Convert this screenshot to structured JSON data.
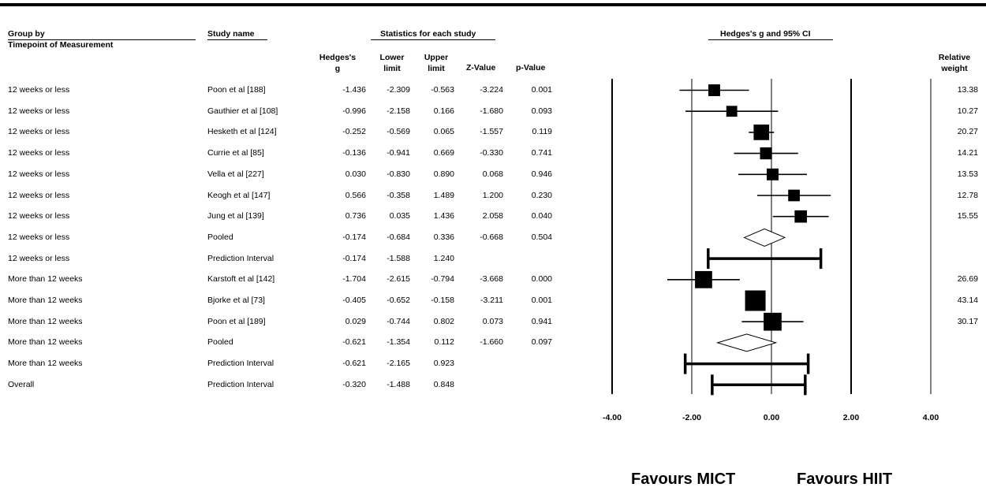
{
  "headers": {
    "group_by": "Group by",
    "group_sub": "Timepoint of Measurement",
    "study_name": "Study name",
    "stats_title": "Statistics for each study",
    "hedges_g_line1": "Hedges's",
    "hedges_g_line2": "g",
    "lower_line1": "Lower",
    "lower_line2": "limit",
    "upper_line1": "Upper",
    "upper_line2": "limit",
    "z_value": "Z-Value",
    "p_value": "p-Value",
    "plot_title": "Hedges's g and 95% CI",
    "weight_line1": "Relative",
    "weight_line2": "weight"
  },
  "rows": [
    {
      "group": "12 weeks or less",
      "study": "Poon et al [188]",
      "g": "-1.436",
      "lower": "-2.309",
      "upper": "-0.563",
      "z": "-3.224",
      "p": "0.001",
      "weight": "13.38"
    },
    {
      "group": "12 weeks or less",
      "study": "Gauthier et al [108]",
      "g": "-0.996",
      "lower": "-2.158",
      "upper": "0.166",
      "z": "-1.680",
      "p": "0.093",
      "weight": "10.27"
    },
    {
      "group": "12 weeks or less",
      "study": "Hesketh et al [124]",
      "g": "-0.252",
      "lower": "-0.569",
      "upper": "0.065",
      "z": "-1.557",
      "p": "0.119",
      "weight": "20.27"
    },
    {
      "group": "12 weeks or less",
      "study": "Currie et al [85]",
      "g": "-0.136",
      "lower": "-0.941",
      "upper": "0.669",
      "z": "-0.330",
      "p": "0.741",
      "weight": "14.21"
    },
    {
      "group": "12 weeks or less",
      "study": "Vella et al [227]",
      "g": "0.030",
      "lower": "-0.830",
      "upper": "0.890",
      "z": "0.068",
      "p": "0.946",
      "weight": "13.53"
    },
    {
      "group": "12 weeks or less",
      "study": "Keogh et al [147]",
      "g": "0.566",
      "lower": "-0.358",
      "upper": "1.489",
      "z": "1.200",
      "p": "0.230",
      "weight": "12.78"
    },
    {
      "group": "12 weeks or less",
      "study": "Jung et al [139]",
      "g": "0.736",
      "lower": "0.035",
      "upper": "1.436",
      "z": "2.058",
      "p": "0.040",
      "weight": "15.55"
    },
    {
      "group": "12 weeks or less",
      "study": "Pooled",
      "g": "-0.174",
      "lower": "-0.684",
      "upper": "0.336",
      "z": "-0.668",
      "p": "0.504",
      "weight": ""
    },
    {
      "group": "12 weeks or less",
      "study": "Prediction Interval",
      "g": "-0.174",
      "lower": "-1.588",
      "upper": "1.240",
      "z": "",
      "p": "",
      "weight": ""
    },
    {
      "group": "More than 12 weeks",
      "study": "Karstoft et al [142]",
      "g": "-1.704",
      "lower": "-2.615",
      "upper": "-0.794",
      "z": "-3.668",
      "p": "0.000",
      "weight": "26.69"
    },
    {
      "group": "More than 12 weeks",
      "study": "Bjorke et al [73]",
      "g": "-0.405",
      "lower": "-0.652",
      "upper": "-0.158",
      "z": "-3.211",
      "p": "0.001",
      "weight": "43.14"
    },
    {
      "group": "More than 12 weeks",
      "study": "Poon et al [189]",
      "g": "0.029",
      "lower": "-0.744",
      "upper": "0.802",
      "z": "0.073",
      "p": "0.941",
      "weight": "30.17"
    },
    {
      "group": "More than 12 weeks",
      "study": "Pooled",
      "g": "-0.621",
      "lower": "-1.354",
      "upper": "0.112",
      "z": "-1.660",
      "p": "0.097",
      "weight": ""
    },
    {
      "group": "More than 12 weeks",
      "study": "Prediction Interval",
      "g": "-0.621",
      "lower": "-2.165",
      "upper": "0.923",
      "z": "",
      "p": "",
      "weight": ""
    },
    {
      "group": "Overall",
      "study": "Prediction Interval",
      "g": "-0.320",
      "lower": "-1.488",
      "upper": "0.848",
      "z": "",
      "p": "",
      "weight": ""
    }
  ],
  "chart_data": {
    "type": "forest",
    "title": "Hedges's g and 95% CI",
    "xlim": [
      -4,
      4
    ],
    "xticks": [
      -4,
      -2,
      0,
      2,
      4
    ],
    "tick_labels": [
      "-4.00",
      "-2.00",
      "0.00",
      "2.00",
      "4.00"
    ],
    "reference_lines": [
      -2,
      0,
      2
    ],
    "marker_kinds": [
      "study",
      "study",
      "study",
      "study",
      "study",
      "study",
      "study",
      "pooled",
      "prediction",
      "study",
      "study",
      "study",
      "pooled",
      "prediction",
      "prediction"
    ],
    "series": [
      {
        "g": -1.436,
        "lower": -2.309,
        "upper": -0.563,
        "weight": 13.38
      },
      {
        "g": -0.996,
        "lower": -2.158,
        "upper": 0.166,
        "weight": 10.27
      },
      {
        "g": -0.252,
        "lower": -0.569,
        "upper": 0.065,
        "weight": 20.27
      },
      {
        "g": -0.136,
        "lower": -0.941,
        "upper": 0.669,
        "weight": 14.21
      },
      {
        "g": 0.03,
        "lower": -0.83,
        "upper": 0.89,
        "weight": 13.53
      },
      {
        "g": 0.566,
        "lower": -0.358,
        "upper": 1.489,
        "weight": 12.78
      },
      {
        "g": 0.736,
        "lower": 0.035,
        "upper": 1.436,
        "weight": 15.55
      },
      {
        "g": -0.174,
        "lower": -0.684,
        "upper": 0.336,
        "weight": null
      },
      {
        "g": -0.174,
        "lower": -1.588,
        "upper": 1.24,
        "weight": null
      },
      {
        "g": -1.704,
        "lower": -2.615,
        "upper": -0.794,
        "weight": 26.69
      },
      {
        "g": -0.405,
        "lower": -0.652,
        "upper": -0.158,
        "weight": 43.14
      },
      {
        "g": 0.029,
        "lower": -0.744,
        "upper": 0.802,
        "weight": 30.17
      },
      {
        "g": -0.621,
        "lower": -1.354,
        "upper": 0.112,
        "weight": null
      },
      {
        "g": -0.621,
        "lower": -2.165,
        "upper": 0.923,
        "weight": null
      },
      {
        "g": -0.32,
        "lower": -1.488,
        "upper": 0.848,
        "weight": null
      }
    ],
    "favours_left": "Favours MICT",
    "favours_right": "Favours HIIT"
  }
}
